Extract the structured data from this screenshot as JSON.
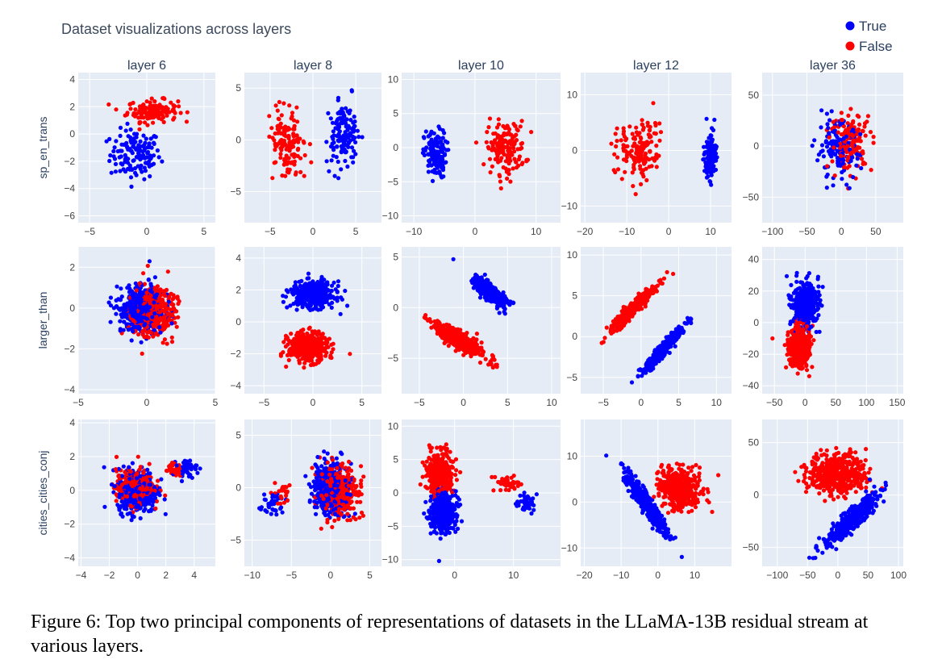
{
  "figure": {
    "main_title": "Dataset visualizations across layers",
    "caption": "Figure 6: Top two principal components of representations of datasets in the LLaMA-13B residual stream at various layers."
  },
  "legend": [
    {
      "label": "True",
      "color": "#0000ff"
    },
    {
      "label": "False",
      "color": "#ff0000"
    }
  ],
  "columns": [
    "layer 6",
    "layer 8",
    "layer 10",
    "layer 12",
    "layer 36"
  ],
  "rows": [
    "sp_en_trans",
    "larger_than",
    "cities_cities_conj"
  ],
  "colors": {
    "true": "#0000ff",
    "false": "#ff0000",
    "plot_bg": "#e5ecf6",
    "grid": "#ffffff"
  },
  "chart_data": [
    {
      "type": "scatter",
      "row": "sp_en_trans",
      "column": "layer 6",
      "xlim": [
        -6,
        6
      ],
      "ylim": [
        -6.5,
        4.5
      ],
      "xticks": [
        -5,
        0,
        5
      ],
      "yticks": [
        -6,
        -4,
        -2,
        0,
        2,
        4
      ],
      "series": [
        {
          "name": "True",
          "clusters": [
            {
              "cx": -1,
              "cy": -1.5,
              "sx": 2.2,
              "sy": 1.8,
              "n": 140
            }
          ]
        },
        {
          "name": "False",
          "clusters": [
            {
              "cx": 0.5,
              "cy": 1.7,
              "sx": 2.2,
              "sy": 0.8,
              "n": 150
            }
          ]
        }
      ]
    },
    {
      "type": "scatter",
      "row": "sp_en_trans",
      "column": "layer 8",
      "xlim": [
        -8,
        8
      ],
      "ylim": [
        -8,
        6.5
      ],
      "xticks": [
        -5,
        0,
        5
      ],
      "yticks": [
        -5,
        0,
        5
      ],
      "series": [
        {
          "name": "True",
          "clusters": [
            {
              "cx": 3.5,
              "cy": 0.5,
              "sx": 1.8,
              "sy": 2.8,
              "n": 150
            }
          ]
        },
        {
          "name": "False",
          "clusters": [
            {
              "cx": -3,
              "cy": -0.5,
              "sx": 2,
              "sy": 3,
              "n": 150
            }
          ]
        }
      ]
    },
    {
      "type": "scatter",
      "row": "sp_en_trans",
      "column": "layer 10",
      "xlim": [
        -12,
        14
      ],
      "ylim": [
        -11,
        11
      ],
      "xticks": [
        -10,
        0,
        10
      ],
      "yticks": [
        -10,
        -5,
        0,
        5,
        10
      ],
      "series": [
        {
          "name": "True",
          "clusters": [
            {
              "cx": -6.5,
              "cy": -1,
              "sx": 1.8,
              "sy": 3.5,
              "n": 140
            }
          ]
        },
        {
          "name": "False",
          "clusters": [
            {
              "cx": 5,
              "cy": 0,
              "sx": 3.2,
              "sy": 3.8,
              "n": 160
            }
          ]
        }
      ]
    },
    {
      "type": "scatter",
      "row": "sp_en_trans",
      "column": "layer 12",
      "xlim": [
        -21,
        15
      ],
      "ylim": [
        -13,
        14
      ],
      "xticks": [
        -20,
        -10,
        0,
        10
      ],
      "yticks": [
        -10,
        0,
        10
      ],
      "series": [
        {
          "name": "True",
          "clusters": [
            {
              "cx": 10,
              "cy": -1,
              "sx": 1.5,
              "sy": 4,
              "n": 130
            }
          ]
        },
        {
          "name": "False",
          "clusters": [
            {
              "cx": -7,
              "cy": 0,
              "sx": 5,
              "sy": 5,
              "n": 150
            }
          ]
        }
      ]
    },
    {
      "type": "scatter",
      "row": "sp_en_trans",
      "column": "layer 36",
      "xlim": [
        -115,
        90
      ],
      "ylim": [
        -75,
        72
      ],
      "xticks": [
        -100,
        -50,
        0,
        50
      ],
      "yticks": [
        -50,
        0,
        50
      ],
      "series": [
        {
          "name": "True",
          "clusters": [
            {
              "cx": -5,
              "cy": -5,
              "sx": 32,
              "sy": 28,
              "n": 140
            }
          ]
        },
        {
          "name": "False",
          "clusters": [
            {
              "cx": 15,
              "cy": 5,
              "sx": 30,
              "sy": 28,
              "n": 140
            }
          ]
        }
      ]
    },
    {
      "type": "scatter",
      "row": "larger_than",
      "column": "layer 6",
      "xlim": [
        -5,
        5
      ],
      "ylim": [
        -4.2,
        3
      ],
      "xticks": [
        -5,
        0,
        5
      ],
      "yticks": [
        -4,
        -2,
        0,
        2
      ],
      "series": [
        {
          "name": "True",
          "clusters": [
            {
              "cx": -0.5,
              "cy": 0,
              "sx": 1.6,
              "sy": 1.2,
              "n": 420
            }
          ]
        },
        {
          "name": "False",
          "clusters": [
            {
              "cx": 0.5,
              "cy": -0.2,
              "sx": 1.5,
              "sy": 1.2,
              "n": 420
            }
          ]
        }
      ]
    },
    {
      "type": "scatter",
      "row": "larger_than",
      "column": "layer 8",
      "xlim": [
        -7,
        7
      ],
      "ylim": [
        -4.5,
        4.7
      ],
      "xticks": [
        -5,
        0,
        5
      ],
      "yticks": [
        -4,
        -2,
        0,
        2,
        4
      ],
      "series": [
        {
          "name": "True",
          "clusters": [
            {
              "cx": 0,
              "cy": 1.7,
              "sx": 2.2,
              "sy": 0.8,
              "n": 420
            }
          ]
        },
        {
          "name": "False",
          "clusters": [
            {
              "cx": -0.5,
              "cy": -1.6,
              "sx": 2,
              "sy": 0.9,
              "n": 420
            }
          ]
        }
      ]
    },
    {
      "type": "scatter",
      "row": "larger_than",
      "column": "layer 10",
      "xlim": [
        -7,
        11
      ],
      "ylim": [
        -8.5,
        6
      ],
      "xticks": [
        -5,
        0,
        5,
        10
      ],
      "yticks": [
        -5,
        0,
        5
      ],
      "series": [
        {
          "name": "True",
          "clusters": [
            {
              "cx": 3,
              "cy": 1.5,
              "sx": 2.2,
              "sy": 0.7,
              "rot": -0.62,
              "n": 380
            }
          ]
        },
        {
          "name": "False",
          "clusters": [
            {
              "cx": -0.5,
              "cy": -3.2,
              "sx": 3.4,
              "sy": 0.8,
              "rot": -0.5,
              "n": 420
            }
          ]
        }
      ]
    },
    {
      "type": "scatter",
      "row": "larger_than",
      "column": "layer 12",
      "xlim": [
        -8,
        12
      ],
      "ylim": [
        -7,
        11
      ],
      "xticks": [
        -5,
        0,
        5,
        10
      ],
      "yticks": [
        -5,
        0,
        5,
        10
      ],
      "series": [
        {
          "name": "True",
          "clusters": [
            {
              "cx": 3,
              "cy": -1.5,
              "sx": 4,
              "sy": 0.6,
              "rot": 0.82,
              "n": 380
            }
          ]
        },
        {
          "name": "False",
          "clusters": [
            {
              "cx": -1,
              "cy": 3.5,
              "sx": 4.2,
              "sy": 0.6,
              "rot": 0.75,
              "n": 380
            }
          ]
        }
      ]
    },
    {
      "type": "scatter",
      "row": "larger_than",
      "column": "layer 36",
      "xlim": [
        -70,
        160
      ],
      "ylim": [
        -45,
        48
      ],
      "xticks": [
        -50,
        0,
        50,
        100,
        150
      ],
      "yticks": [
        -40,
        -20,
        0,
        20,
        40
      ],
      "series": [
        {
          "name": "True",
          "clusters": [
            {
              "cx": 0,
              "cy": 12,
              "sx": 22,
              "sy": 14,
              "n": 380
            }
          ]
        },
        {
          "name": "False",
          "clusters": [
            {
              "cx": -10,
              "cy": -15,
              "sx": 18,
              "sy": 13,
              "n": 380
            }
          ]
        }
      ]
    },
    {
      "type": "scatter",
      "row": "cities_cities_conj",
      "column": "layer 6",
      "xlim": [
        -4.2,
        5.5
      ],
      "ylim": [
        -4.5,
        4.2
      ],
      "xticks": [
        -4,
        -2,
        0,
        2,
        4
      ],
      "yticks": [
        -4,
        -2,
        0,
        2,
        4
      ],
      "series": [
        {
          "name": "True",
          "clusters": [
            {
              "cx": 0,
              "cy": 0,
              "sx": 1.4,
              "sy": 1.3,
              "n": 380
            },
            {
              "cx": 3.5,
              "cy": 1.3,
              "sx": 0.7,
              "sy": 0.5,
              "n": 40
            }
          ]
        },
        {
          "name": "False",
          "clusters": [
            {
              "cx": -0.2,
              "cy": 0.2,
              "sx": 1.3,
              "sy": 1,
              "n": 380
            },
            {
              "cx": 2.5,
              "cy": 1.2,
              "sx": 0.6,
              "sy": 0.4,
              "n": 30
            }
          ]
        }
      ]
    },
    {
      "type": "scatter",
      "row": "cities_cities_conj",
      "column": "layer 8",
      "xlim": [
        -11,
        6.5
      ],
      "ylim": [
        -7.5,
        6.5
      ],
      "xticks": [
        -10,
        -5,
        0,
        5
      ],
      "yticks": [
        -5,
        0,
        5
      ],
      "series": [
        {
          "name": "True",
          "clusters": [
            {
              "cx": 0,
              "cy": 0,
              "sx": 2.3,
              "sy": 2.4,
              "n": 400
            },
            {
              "cx": -7.5,
              "cy": -1.5,
              "sx": 1.2,
              "sy": 1,
              "n": 40
            }
          ]
        },
        {
          "name": "False",
          "clusters": [
            {
              "cx": 1,
              "cy": -0.5,
              "sx": 2.3,
              "sy": 2.4,
              "n": 400
            },
            {
              "cx": -6,
              "cy": -0.5,
              "sx": 1.5,
              "sy": 1.2,
              "n": 25
            }
          ]
        }
      ]
    },
    {
      "type": "scatter",
      "row": "cities_cities_conj",
      "column": "layer 10",
      "xlim": [
        -9,
        18
      ],
      "ylim": [
        -11,
        11
      ],
      "xticks": [
        0,
        10
      ],
      "yticks": [
        -10,
        -5,
        0,
        5,
        10
      ],
      "series": [
        {
          "name": "True",
          "clusters": [
            {
              "cx": -2,
              "cy": -3,
              "sx": 2.2,
              "sy": 3,
              "n": 380
            },
            {
              "cx": 12,
              "cy": -1.5,
              "sx": 1.6,
              "sy": 1.6,
              "n": 40
            }
          ]
        },
        {
          "name": "False",
          "clusters": [
            {
              "cx": -2.5,
              "cy": 3,
              "sx": 2.2,
              "sy": 3,
              "n": 380
            },
            {
              "cx": 9,
              "cy": 1.5,
              "sx": 2.8,
              "sy": 1.5,
              "n": 45
            }
          ]
        }
      ]
    },
    {
      "type": "scatter",
      "row": "cities_cities_conj",
      "column": "layer 12",
      "xlim": [
        -21,
        20
      ],
      "ylim": [
        -14,
        18
      ],
      "xticks": [
        -20,
        -10,
        0,
        10
      ],
      "yticks": [
        -10,
        0,
        10
      ],
      "series": [
        {
          "name": "True",
          "clusters": [
            {
              "cx": -3,
              "cy": -0.5,
              "sx": 9,
              "sy": 1.5,
              "rot": -0.85,
              "n": 400
            }
          ]
        },
        {
          "name": "False",
          "clusters": [
            {
              "cx": 6,
              "cy": 3,
              "sx": 5.5,
              "sy": 4.5,
              "n": 420
            }
          ]
        }
      ]
    },
    {
      "type": "scatter",
      "row": "cities_cities_conj",
      "column": "layer 36",
      "xlim": [
        -125,
        108
      ],
      "ylim": [
        -68,
        72
      ],
      "xticks": [
        -100,
        -50,
        0,
        50,
        100
      ],
      "yticks": [
        -50,
        0,
        50
      ],
      "series": [
        {
          "name": "True",
          "clusters": [
            {
              "cx": 20,
              "cy": -25,
              "sx": 50,
              "sy": 9,
              "rot": 0.5,
              "n": 420
            }
          ]
        },
        {
          "name": "False",
          "clusters": [
            {
              "cx": 0,
              "cy": 20,
              "sx": 48,
              "sy": 20,
              "n": 450
            }
          ]
        }
      ]
    }
  ]
}
